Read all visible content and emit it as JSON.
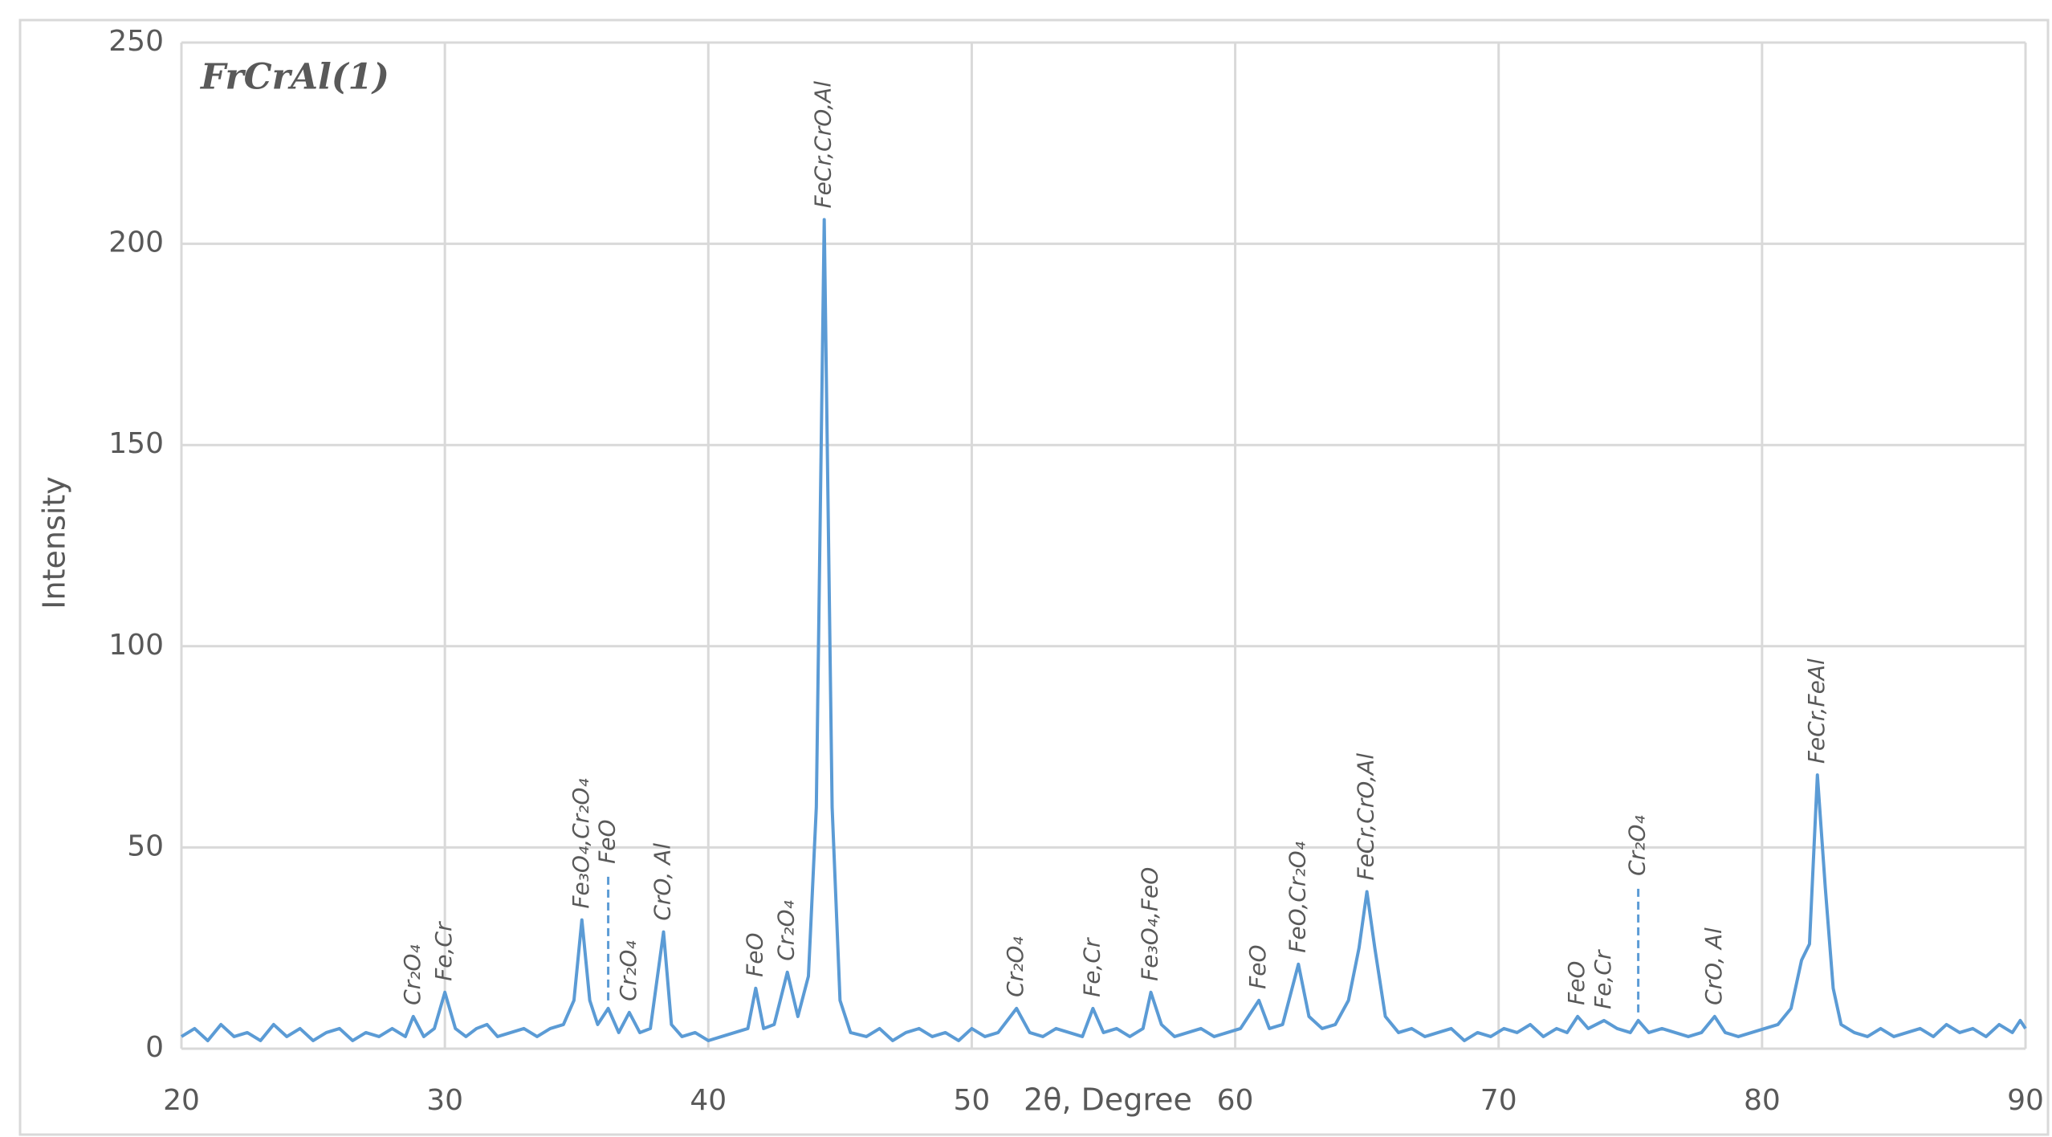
{
  "chart_data": {
    "type": "line",
    "title": "FrCrAl(1)",
    "xlabel": "2θ, Degree",
    "ylabel": "Intensity",
    "xlim": [
      20,
      90
    ],
    "xticks": [
      20,
      30,
      40,
      50,
      60,
      70,
      80,
      90
    ],
    "ylim": [
      0,
      250
    ],
    "yticks": [
      0,
      50,
      100,
      150,
      200,
      250
    ],
    "grid": true,
    "series": [
      {
        "name": "FrCrAl(1)",
        "color": "#5b9bd5",
        "x": [
          20,
          20.5,
          21,
          21.5,
          22,
          22.5,
          23,
          23.5,
          24,
          24.5,
          25,
          25.5,
          26,
          26.5,
          27,
          27.5,
          28,
          28.5,
          28.8,
          29.2,
          29.6,
          30,
          30.4,
          30.8,
          31.2,
          31.6,
          32,
          32.5,
          33,
          33.5,
          34,
          34.5,
          34.9,
          35.2,
          35.5,
          35.8,
          36.2,
          36.6,
          37,
          37.4,
          37.8,
          38.3,
          38.6,
          39,
          39.5,
          40,
          40.5,
          41,
          41.5,
          41.8,
          42.1,
          42.5,
          43,
          43.4,
          43.8,
          44.1,
          44.4,
          44.7,
          45,
          45.4,
          46,
          46.5,
          47,
          47.5,
          48,
          48.5,
          49,
          49.5,
          50,
          50.5,
          51,
          51.7,
          52.2,
          52.7,
          53.2,
          53.7,
          54.2,
          54.6,
          55,
          55.5,
          56,
          56.5,
          56.8,
          57.2,
          57.7,
          58.2,
          58.7,
          59.2,
          59.7,
          60.2,
          60.9,
          61.3,
          61.8,
          62.4,
          62.8,
          63.3,
          63.8,
          64.3,
          64.7,
          65,
          65.3,
          65.7,
          66.2,
          66.7,
          67.2,
          67.7,
          68.2,
          68.7,
          69.2,
          69.7,
          70.2,
          70.7,
          71.2,
          71.7,
          72.2,
          72.6,
          73,
          73.4,
          74,
          74.5,
          75,
          75.3,
          75.7,
          76.2,
          76.7,
          77.2,
          77.7,
          78.2,
          78.6,
          79.1,
          79.6,
          80.1,
          80.6,
          81.1,
          81.5,
          81.8,
          82.1,
          82.4,
          82.7,
          83,
          83.5,
          84,
          84.5,
          85,
          85.5,
          86,
          86.5,
          87,
          87.5,
          88,
          88.5,
          89,
          89.5,
          89.8,
          90
        ],
        "values": [
          3,
          5,
          2,
          6,
          3,
          4,
          2,
          6,
          3,
          5,
          2,
          4,
          5,
          2,
          4,
          3,
          5,
          3,
          8,
          3,
          5,
          14,
          5,
          3,
          5,
          6,
          3,
          4,
          5,
          3,
          5,
          6,
          12,
          32,
          12,
          6,
          10,
          4,
          9,
          4,
          5,
          29,
          6,
          3,
          4,
          2,
          3,
          4,
          5,
          15,
          5,
          6,
          19,
          8,
          18,
          60,
          206,
          60,
          12,
          4,
          3,
          5,
          2,
          4,
          5,
          3,
          4,
          2,
          5,
          3,
          4,
          10,
          4,
          3,
          5,
          4,
          3,
          10,
          4,
          5,
          3,
          5,
          14,
          6,
          3,
          4,
          5,
          3,
          4,
          5,
          12,
          5,
          6,
          21,
          8,
          5,
          6,
          12,
          25,
          39,
          25,
          8,
          4,
          5,
          3,
          4,
          5,
          2,
          4,
          3,
          5,
          4,
          6,
          3,
          5,
          4,
          8,
          5,
          7,
          5,
          4,
          7,
          4,
          5,
          4,
          3,
          4,
          8,
          4,
          3,
          4,
          5,
          6,
          10,
          22,
          26,
          68,
          40,
          15,
          6,
          4,
          3,
          5,
          3,
          4,
          5,
          3,
          6,
          4,
          5,
          3,
          6,
          4,
          7,
          5
        ]
      }
    ],
    "annotations": [
      {
        "x": 28.8,
        "text": "Cr₂O₄"
      },
      {
        "x": 30.0,
        "text": "Fe,Cr"
      },
      {
        "x": 35.2,
        "text": "Fe₃O₄,Cr₂O₄"
      },
      {
        "x": 36.2,
        "text": "FeO",
        "leader": true
      },
      {
        "x": 37.0,
        "text": "Cr₂O₄"
      },
      {
        "x": 38.3,
        "text": "CrO, Al"
      },
      {
        "x": 41.8,
        "text": "FeO"
      },
      {
        "x": 43.0,
        "text": "Cr₂O₄"
      },
      {
        "x": 44.4,
        "text": "FeCr,CrO,Al"
      },
      {
        "x": 51.7,
        "text": "Cr₂O₄"
      },
      {
        "x": 54.6,
        "text": "Fe,Cr"
      },
      {
        "x": 56.8,
        "text": "Fe₃O₄,FeO"
      },
      {
        "x": 60.9,
        "text": "FeO"
      },
      {
        "x": 62.4,
        "text": "FeO,Cr₂O₄"
      },
      {
        "x": 65.0,
        "text": "FeCr,CrO,Al"
      },
      {
        "x": 73.0,
        "text": "FeO"
      },
      {
        "x": 74.0,
        "text": "Fe,Cr"
      },
      {
        "x": 75.3,
        "text": "Cr₂O₄",
        "leader": true
      },
      {
        "x": 78.2,
        "text": "CrO, Al"
      },
      {
        "x": 82.1,
        "text": "FeCr,FeAl"
      }
    ]
  }
}
